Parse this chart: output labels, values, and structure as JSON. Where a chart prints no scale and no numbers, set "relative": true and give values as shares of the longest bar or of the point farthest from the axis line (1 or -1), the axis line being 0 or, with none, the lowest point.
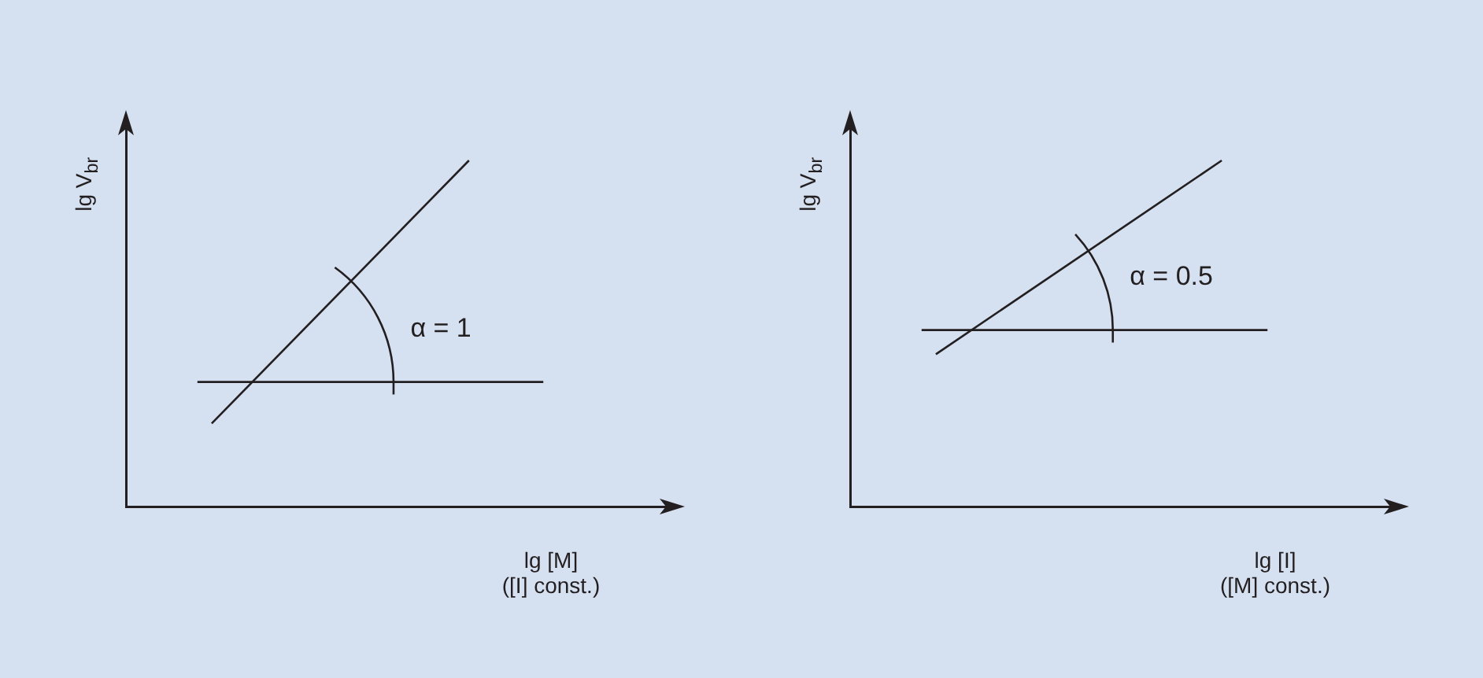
{
  "chart_data": [
    {
      "type": "line",
      "relative": true,
      "categories": [
        null,
        null,
        null,
        null,
        null,
        null,
        null,
        null,
        null,
        null,
        null,
        null,
        null,
        null,
        null,
        null,
        null,
        null,
        null,
        null
      ],
      "series": [
        {
          "color": "#231f20",
          "values": [
            null,
            null,
            null,
            0.24,
            null,
            null,
            null,
            null,
            null,
            null,
            null,
            null,
            1,
            null,
            null,
            null,
            null,
            null,
            null,
            null
          ]
        }
      ],
      "ref_lines": [
        {
          "axis": "y",
          "value": 0.36,
          "color": "#231f20"
        }
      ],
      "xlabel": "lg [M]\n([I] const.)",
      "ylabel": "lg V$_{br}$",
      "annotations": [
        "α = 1"
      ],
      "marker": "none",
      "line_style": "solid",
      "grid": false,
      "legend": false,
      "tick_labels": false
    },
    {
      "type": "line",
      "relative": true,
      "categories": [
        null,
        null,
        null,
        null,
        null,
        null,
        null,
        null,
        null,
        null,
        null,
        null,
        null,
        null,
        null,
        null,
        null,
        null,
        null,
        null
      ],
      "series": [
        {
          "color": "#231f20",
          "values": [
            null,
            null,
            null,
            0.44,
            null,
            null,
            null,
            null,
            null,
            null,
            null,
            null,
            null,
            1,
            null,
            null,
            null,
            null,
            null,
            null
          ]
        }
      ],
      "ref_lines": [
        {
          "axis": "y",
          "value": 0.51,
          "color": "#231f20"
        }
      ],
      "xlabel": "lg [I]\n([M] const.)",
      "ylabel": "lg V$_{br}$",
      "annotations": [
        "α = 0.5"
      ],
      "marker": "none",
      "line_style": "solid",
      "grid": false,
      "legend": false,
      "tick_labels": false
    }
  ]
}
